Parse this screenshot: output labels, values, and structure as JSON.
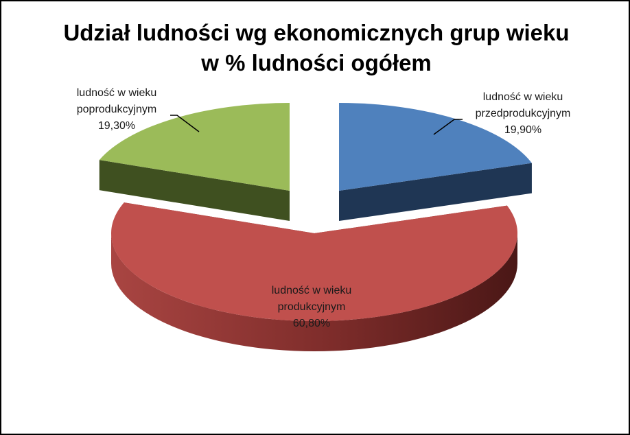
{
  "chart_data": {
    "type": "pie",
    "title_line1": "Udział ludności wg ekonomicznych grup wieku",
    "title_line2": "w % ludności ogółem",
    "slices": [
      {
        "label_line1": "ludność w wieku",
        "label_line2": "przedprodukcyjnym",
        "value_label": "19,90%",
        "value": 19.9,
        "color": "#4f81bd",
        "side_color": "#1f3654"
      },
      {
        "label_line1": "ludność w wieku",
        "label_line2": "produkcyjnym",
        "value_label": "60,80%",
        "value": 60.8,
        "color": "#c0504d",
        "side_color": "#7a2a28"
      },
      {
        "label_line1": "ludność w wieku",
        "label_line2": "poprodukcyjnym",
        "value_label": "19,30%",
        "value": 19.3,
        "color": "#9bbb59",
        "side_color": "#3f5020"
      }
    ]
  }
}
